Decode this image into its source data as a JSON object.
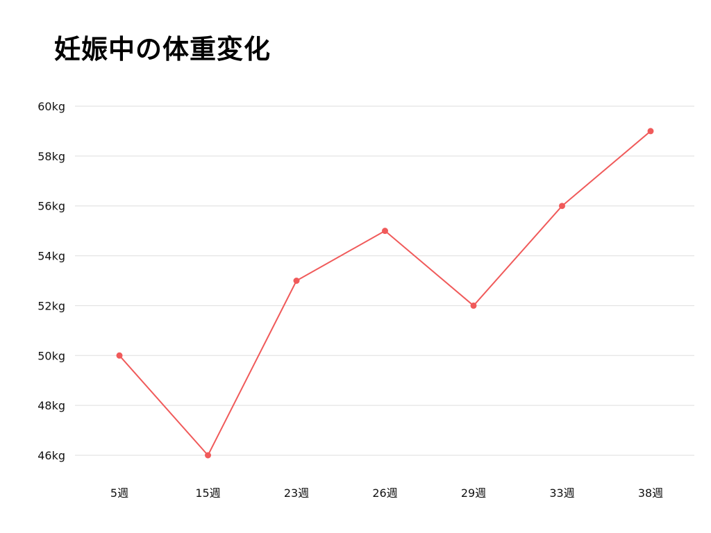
{
  "title": "妊娠中の体重変化",
  "chart_data": {
    "type": "line",
    "title": "妊娠中の体重変化",
    "xlabel": "",
    "ylabel": "",
    "categories": [
      "5週",
      "15週",
      "23週",
      "26週",
      "29週",
      "33週",
      "38週"
    ],
    "series": [
      {
        "values": [
          50,
          46,
          53,
          55,
          52,
          56,
          59
        ]
      }
    ],
    "ylim": [
      46,
      60
    ],
    "yticks": [
      60,
      58,
      56,
      54,
      52,
      50,
      48,
      46
    ],
    "ytick_labels": [
      "60kg",
      "58kg",
      "56kg",
      "54kg",
      "52kg",
      "50kg",
      "48kg",
      "46kg"
    ],
    "grid": true,
    "legend": "none",
    "line_color": "#f05a5a",
    "grid_color": "#dddddd"
  }
}
